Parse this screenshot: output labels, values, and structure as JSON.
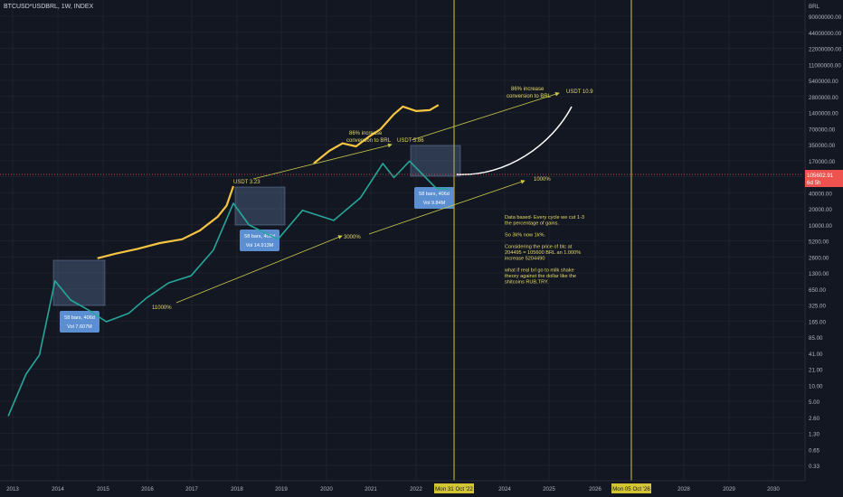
{
  "header": {
    "symbol": "BTCUSD*USDBRL, 1W, INDEX"
  },
  "colors": {
    "bg": "#131722",
    "grid": "#1c202c",
    "up": "#26a69a",
    "down": "#ef5350",
    "accent": "#f5c542",
    "line": "#c8c84a",
    "price": "#ef5350",
    "box": "#5b8fd1"
  },
  "chart_data": {
    "type": "line",
    "title": "BTCUSD*USDBRL, 1W, INDEX",
    "y_scale": "log",
    "y_unit": "BRL",
    "y_ticks": [
      "90000000.00",
      "44000000.00",
      "22000000.00",
      "11000000.00",
      "5400000.00",
      "2800000.00",
      "1400000.00",
      "700000.00",
      "350000.00",
      "170000.00",
      "85000.00",
      "40000.00",
      "20000.00",
      "10000.00",
      "5200.00",
      "2600.00",
      "1300.00",
      "650.00",
      "325.00",
      "165.00",
      "85.00",
      "41.00",
      "21.00",
      "10.00",
      "5.00",
      "2.60",
      "1.30",
      "0.65",
      "0.33"
    ],
    "x_ticks": [
      "2013",
      "2014",
      "2015",
      "2016",
      "2017",
      "2018",
      "2019",
      "2020",
      "2021",
      "2022",
      "Mon 31 Oct '22",
      "2024",
      "2025",
      "2026",
      "Mon 05 Oct '26",
      "2028",
      "2029",
      "2030"
    ],
    "series": [
      {
        "points": [
          [
            2012.9,
            11
          ],
          [
            2013.3,
            60
          ],
          [
            2013.6,
            130
          ],
          [
            2013.95,
            2600
          ],
          [
            2014.3,
            1200
          ],
          [
            2014.7,
            800
          ],
          [
            2015.1,
            500
          ],
          [
            2015.6,
            700
          ],
          [
            2016.0,
            1300
          ],
          [
            2016.5,
            2400
          ],
          [
            2017.0,
            3200
          ],
          [
            2017.5,
            9000
          ],
          [
            2017.95,
            60000
          ],
          [
            2018.3,
            25000
          ],
          [
            2018.95,
            14000
          ],
          [
            2019.5,
            45000
          ],
          [
            2020.2,
            30000
          ],
          [
            2020.8,
            75000
          ],
          [
            2021.3,
            300000
          ],
          [
            2021.55,
            170000
          ],
          [
            2021.9,
            330000
          ],
          [
            2022.2,
            190000
          ],
          [
            2022.5,
            110000
          ],
          [
            2022.8,
            105600
          ]
        ]
      },
      {
        "points": [
          [
            2014.9,
            6500
          ],
          [
            2015.3,
            7800
          ],
          [
            2015.8,
            9500
          ],
          [
            2016.3,
            12000
          ],
          [
            2016.8,
            14000
          ],
          [
            2017.2,
            20000
          ],
          [
            2017.6,
            35000
          ],
          [
            2017.8,
            55000
          ],
          [
            2017.95,
            120000
          ]
        ]
      },
      {
        "points": [
          [
            2019.75,
            300000
          ],
          [
            2020.1,
            500000
          ],
          [
            2020.4,
            680000
          ],
          [
            2020.7,
            600000
          ],
          [
            2021.0,
            900000
          ],
          [
            2021.25,
            1200000
          ],
          [
            2021.55,
            2200000
          ],
          [
            2021.75,
            3000000
          ],
          [
            2022.05,
            2500000
          ],
          [
            2022.35,
            2600000
          ],
          [
            2022.55,
            3200000
          ]
        ]
      }
    ],
    "last_price": "105602.91",
    "countdown": "6d 5h",
    "annotations": [
      {
        "text": "USDT 3.23"
      },
      {
        "text": "86% increase"
      },
      {
        "text": "conversion to BRL"
      },
      {
        "text": "USDT 5.86"
      },
      {
        "text": "86% increase"
      },
      {
        "text": "conversion to BRL"
      },
      {
        "text": "USDT 10.9"
      },
      {
        "text": "1000%"
      },
      {
        "text": "3000%"
      },
      {
        "text": "11000%"
      }
    ],
    "boxes": [
      {
        "line1": "58 bars, 406d",
        "line2": "Vol 7.607M"
      },
      {
        "line1": "58 bars, 406d",
        "line2": "Vol 14.913M"
      },
      {
        "line1": "58 bars, 406d",
        "line2": "Vol 9.84M"
      }
    ],
    "note": [
      "Data based- Every cycle we cut 1-3",
      "the  percentage of gains.",
      "",
      "So 3k% now 1k%.",
      "",
      "Considering the price of btc at",
      "204495 = 105600 BRL an 1.000%",
      "increase   5204490",
      "",
      "what if real brl go to milk shake",
      "theory against the dollar like the",
      "shitcoins RUB,TRY."
    ]
  }
}
